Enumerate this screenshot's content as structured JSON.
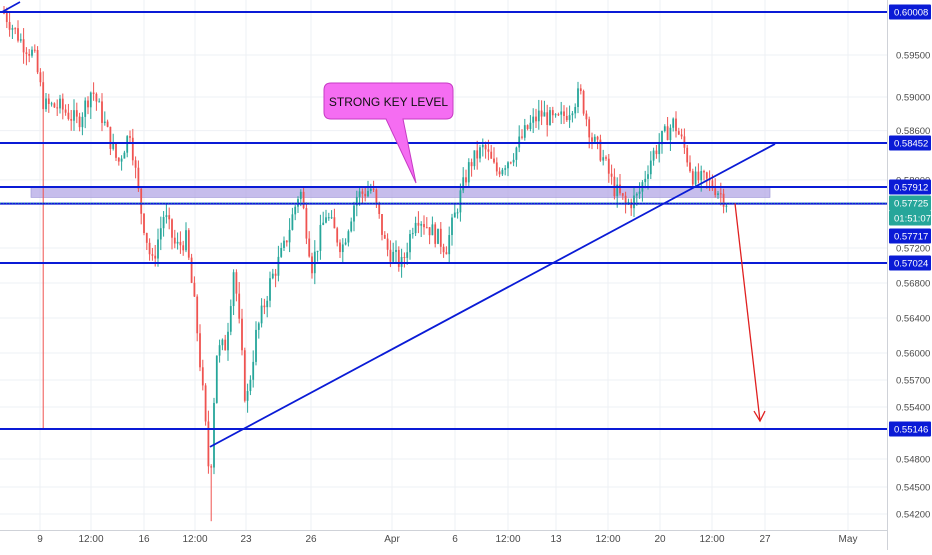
{
  "chart_data": {
    "type": "candlestick",
    "title": "",
    "xlabel": "",
    "ylabel": "",
    "ylim": [
      0.5412,
      0.6023
    ],
    "colors": {
      "up": "#26a69a",
      "down": "#ef5350",
      "level_line": "#0a1bd6",
      "zone_fill": "#b3a7e6",
      "callout_fill": "#f56df2",
      "arrow": "#e02020",
      "grid": "#eef0f4",
      "axis_text": "#4a4a4a"
    },
    "x_ticks": [
      "9",
      "12:00",
      "16",
      "12:00",
      "23",
      "26",
      "Apr",
      "6",
      "12:00",
      "13",
      "12:00",
      "20",
      "12:00",
      "27",
      "May"
    ],
    "y_ticks": [
      "0.59500",
      "0.59000",
      "0.58600",
      "0.58000",
      "0.57200",
      "0.56800",
      "0.56400",
      "0.56000",
      "0.55700",
      "0.55400",
      "0.54800",
      "0.54500",
      "0.54200"
    ],
    "horizontal_levels": [
      0.60008,
      0.58452,
      0.57912,
      0.57717,
      0.57024,
      0.55146
    ],
    "key_zone": [
      0.5779,
      0.5791
    ],
    "price_labels": [
      {
        "text": "0.60008",
        "value": 0.60008,
        "style": "level"
      },
      {
        "text": "0.58452",
        "value": 0.58452,
        "style": "level"
      },
      {
        "text": "0.57912",
        "value": 0.57912,
        "style": "level"
      },
      {
        "text": "0.57725",
        "value": 0.57725,
        "style": "current"
      },
      {
        "text": "01:51:07",
        "value": 0.5762,
        "style": "countdown"
      },
      {
        "text": "0.57717",
        "value": 0.57717,
        "style": "level"
      },
      {
        "text": "0.57024",
        "value": 0.57024,
        "style": "level"
      },
      {
        "text": "0.55146",
        "value": 0.55146,
        "style": "level"
      }
    ],
    "annotation": {
      "text": "STRONG  KEY  LEVEL"
    },
    "trendline": {
      "start": 0.5494,
      "end": 0.5844
    },
    "projection": {
      "from": 0.5772,
      "to": 0.5518
    },
    "candles_summary": {
      "first_open": 0.6001,
      "low": 0.5412,
      "last_close": 0.57725
    }
  }
}
